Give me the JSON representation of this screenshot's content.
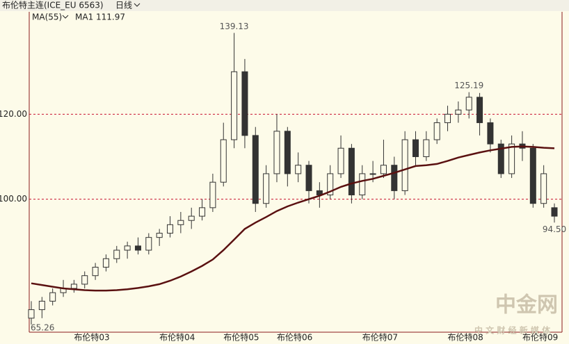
{
  "chart_data": {
    "type": "candlestick",
    "title": "布伦特主连(ICE_EU 6563)",
    "period": "日线",
    "indicator": "MA(55)",
    "categories": [
      null,
      null,
      null,
      null,
      "布伦特03",
      null,
      null,
      null,
      null,
      null,
      null,
      null,
      "布伦特04",
      null,
      null,
      null,
      null,
      null,
      "布伦特05",
      null,
      null,
      null,
      null,
      "布伦特06",
      null,
      null,
      null,
      null,
      null,
      null,
      null,
      "布伦特07",
      null,
      null,
      null,
      null,
      null,
      null,
      null,
      "布伦特08",
      null,
      null,
      null,
      null,
      null,
      null,
      "布伦特09",
      null,
      null,
      null
    ],
    "open": [
      72,
      74,
      76,
      78,
      79,
      80,
      82,
      84,
      86,
      88,
      89,
      88,
      91,
      92,
      94,
      95,
      96,
      98,
      104,
      114,
      130,
      115,
      99,
      106,
      116,
      106,
      108,
      102,
      101,
      106,
      112,
      101,
      106,
      106,
      108,
      102,
      114,
      110,
      114,
      118,
      120,
      121,
      124,
      118,
      113,
      106,
      113,
      112,
      99,
      98
    ],
    "high": [
      76,
      77,
      79,
      81,
      81,
      83,
      85,
      87,
      89,
      90,
      91,
      92,
      93,
      96,
      97,
      98,
      100,
      106,
      118,
      139.13,
      133,
      117,
      108,
      120,
      117,
      111,
      109,
      104,
      108,
      115,
      113,
      108,
      109,
      114,
      110,
      116,
      116,
      116,
      119,
      122,
      123,
      125.19,
      125,
      119,
      114,
      115,
      116,
      113,
      108,
      99
    ],
    "low": [
      70.5,
      72,
      75,
      77,
      78,
      79,
      81,
      83,
      85,
      86,
      87,
      87,
      89,
      91,
      92,
      93,
      95,
      97,
      103,
      112,
      112,
      97,
      98,
      104,
      103,
      104,
      99,
      98,
      100,
      105,
      99,
      100,
      104,
      105,
      100,
      101,
      108,
      109,
      113,
      116,
      118,
      119,
      115,
      111,
      105,
      105,
      109,
      98,
      98,
      94.5
    ],
    "close": [
      74,
      76,
      78,
      79,
      80,
      82,
      84,
      86,
      88,
      89,
      88,
      91,
      92,
      94,
      95,
      96,
      98,
      104,
      114,
      130,
      115,
      99,
      106,
      116,
      106,
      108,
      102,
      101,
      106,
      112,
      101,
      106,
      106,
      108,
      102,
      114,
      110,
      114,
      118,
      120,
      121,
      124,
      118,
      113,
      106,
      113,
      112,
      99,
      106,
      96
    ],
    "ma": {
      "name": "MA1",
      "color": "#5a1010",
      "values": [
        80.2,
        79.8,
        79.4,
        79.0,
        78.8,
        78.6,
        78.5,
        78.5,
        78.6,
        78.8,
        79.1,
        79.5,
        80.0,
        80.8,
        81.8,
        83.0,
        84.3,
        85.8,
        88.0,
        90.5,
        93.0,
        94.5,
        95.8,
        97.2,
        98.3,
        99.2,
        100.0,
        100.8,
        101.8,
        102.9,
        103.7,
        104.3,
        104.8,
        105.5,
        106.2,
        107.0,
        107.8,
        108.0,
        108.3,
        109.0,
        109.8,
        110.4,
        111.0,
        111.5,
        111.9,
        112.3,
        112.4,
        112.3,
        112.1,
        111.97
      ]
    },
    "annotations": [
      {
        "value": 139.13,
        "label": "139.13"
      },
      {
        "value": 125.19,
        "label": "125.19"
      },
      {
        "value": 94.5,
        "label": "94.50"
      },
      {
        "value": 65.26,
        "label": "65.26"
      }
    ],
    "ylim": [
      68.7,
      144.1
    ],
    "yticks": [
      {
        "value": 100,
        "label": "100.00"
      },
      {
        "value": 120,
        "label": "120.00"
      }
    ],
    "grid": true,
    "watermark": [
      "中金网",
      "中 文 财 经 新 媒 体"
    ]
  }
}
